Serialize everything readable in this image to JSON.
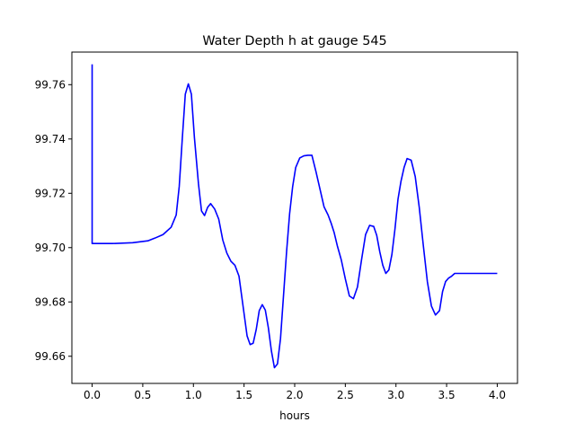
{
  "chart_data": {
    "type": "line",
    "title": "Water Depth h at gauge 545",
    "xlabel": "hours",
    "ylabel": "",
    "xlim": [
      -0.2,
      4.2
    ],
    "ylim": [
      99.65,
      99.772
    ],
    "xticks": [
      0.0,
      0.5,
      1.0,
      1.5,
      2.0,
      2.5,
      3.0,
      3.5,
      4.0
    ],
    "xtick_labels": [
      "0.0",
      "0.5",
      "1.0",
      "1.5",
      "2.0",
      "2.5",
      "3.0",
      "3.5",
      "4.0"
    ],
    "yticks": [
      99.66,
      99.68,
      99.7,
      99.72,
      99.74,
      99.76
    ],
    "ytick_labels": [
      "99.66",
      "99.68",
      "99.70",
      "99.72",
      "99.74",
      "99.76"
    ],
    "grid": false,
    "series": [
      {
        "color": "#0000ff",
        "x": [
          0.0,
          0.0,
          0.005,
          0.2,
          0.4,
          0.55,
          0.62,
          0.7,
          0.78,
          0.83,
          0.86,
          0.89,
          0.92,
          0.95,
          0.98,
          1.01,
          1.05,
          1.08,
          1.11,
          1.14,
          1.17,
          1.21,
          1.25,
          1.29,
          1.33,
          1.37,
          1.41,
          1.45,
          1.49,
          1.53,
          1.56,
          1.59,
          1.62,
          1.65,
          1.68,
          1.71,
          1.74,
          1.77,
          1.8,
          1.83,
          1.86,
          1.89,
          1.92,
          1.95,
          1.98,
          2.01,
          2.05,
          2.09,
          2.13,
          2.17,
          2.21,
          2.25,
          2.29,
          2.33,
          2.36,
          2.39,
          2.42,
          2.46,
          2.5,
          2.54,
          2.58,
          2.62,
          2.66,
          2.7,
          2.74,
          2.78,
          2.81,
          2.84,
          2.87,
          2.9,
          2.93,
          2.96,
          2.99,
          3.02,
          3.05,
          3.08,
          3.11,
          3.15,
          3.19,
          3.23,
          3.27,
          3.31,
          3.35,
          3.39,
          3.43,
          3.46,
          3.49,
          3.52,
          3.55,
          3.58,
          3.61,
          3.64,
          3.67,
          3.7,
          3.74,
          3.78,
          3.81,
          3.84,
          3.87,
          3.9,
          3.94,
          3.98,
          4.0
        ],
        "y": [
          99.7675,
          99.7015,
          99.7015,
          99.7015,
          99.7018,
          99.7025,
          99.7035,
          99.7048,
          99.7075,
          99.712,
          99.7225,
          99.74,
          99.7565,
          99.7603,
          99.7565,
          99.7405,
          99.7235,
          99.7135,
          99.7118,
          99.7148,
          99.7162,
          99.7142,
          99.7105,
          99.7028,
          99.698,
          99.695,
          99.6935,
          99.6895,
          99.6785,
          99.6675,
          99.6643,
          99.6648,
          99.6698,
          99.6768,
          99.679,
          99.677,
          99.6705,
          99.662,
          99.6558,
          99.6572,
          99.6665,
          99.6825,
          99.6985,
          99.7125,
          99.7225,
          99.7295,
          99.733,
          99.7338,
          99.734,
          99.734,
          99.728,
          99.7215,
          99.715,
          99.712,
          99.709,
          99.7055,
          99.7008,
          99.6955,
          99.6885,
          99.6822,
          99.6812,
          99.6855,
          99.6955,
          99.7048,
          99.7082,
          99.7078,
          99.7045,
          99.6985,
          99.6935,
          99.6905,
          99.6918,
          99.6975,
          99.7068,
          99.7178,
          99.7245,
          99.7295,
          99.7328,
          99.7322,
          99.7262,
          99.7148,
          99.7008,
          99.6875,
          99.6785,
          99.6752,
          99.6768,
          99.6838,
          99.6875,
          99.6888,
          99.6895,
          99.6905,
          99.6905,
          99.6905,
          99.6905,
          99.6905,
          99.6905,
          99.6905,
          99.6905,
          99.6905,
          99.6905,
          99.6905,
          99.6905,
          99.6905,
          99.6905
        ]
      }
    ]
  }
}
